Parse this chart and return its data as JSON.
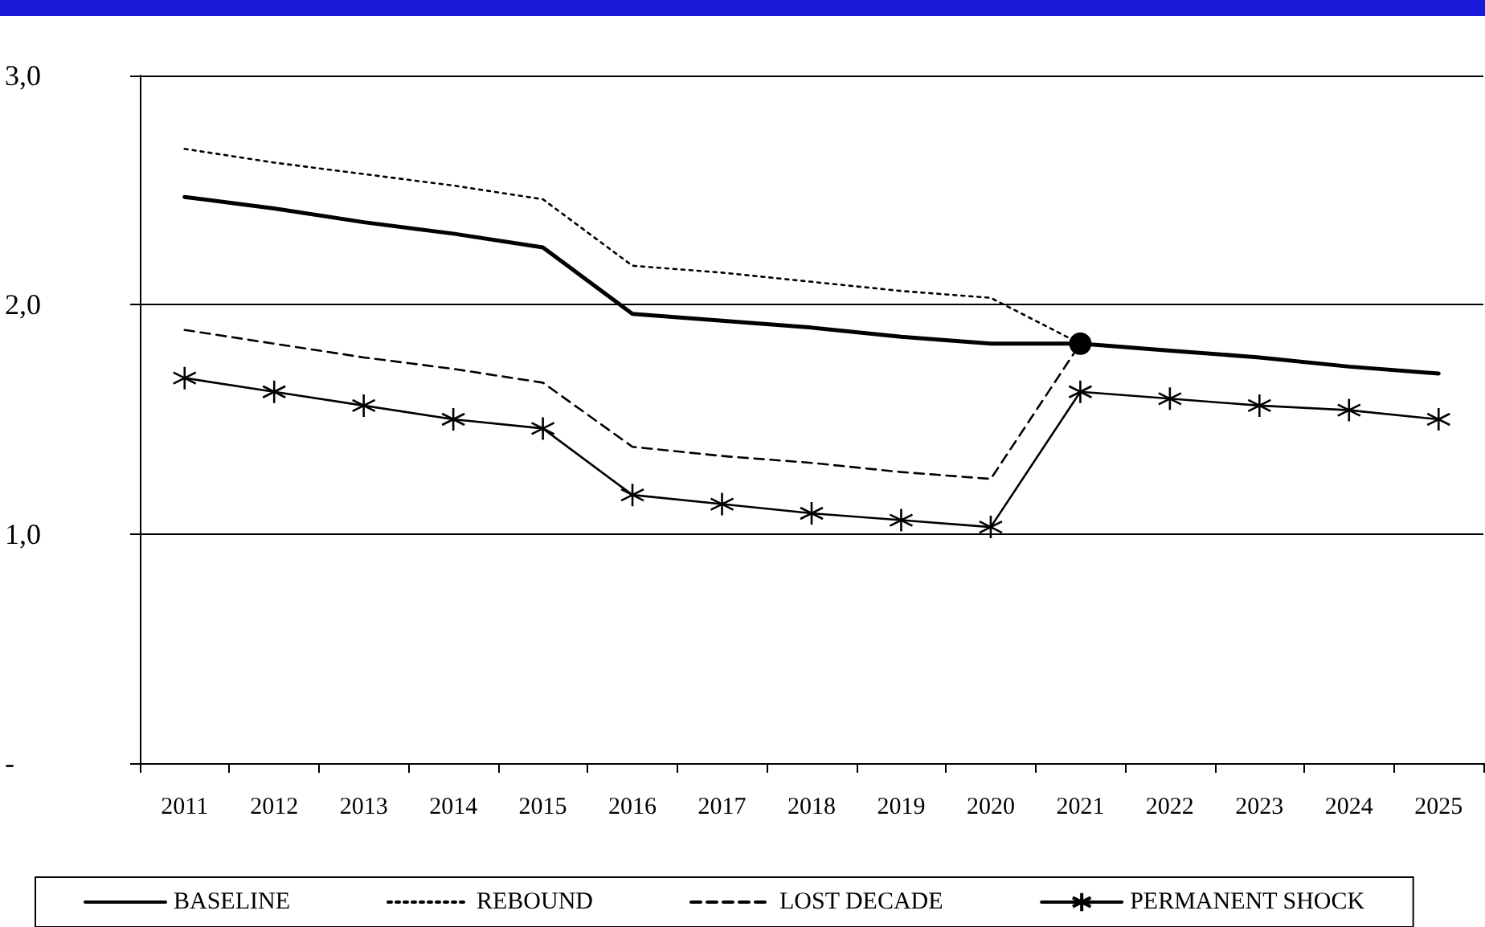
{
  "chart_data": {
    "type": "line",
    "categories": [
      "2011",
      "2012",
      "2013",
      "2014",
      "2015",
      "2016",
      "2017",
      "2018",
      "2019",
      "2020",
      "2021",
      "2022",
      "2023",
      "2024",
      "2025"
    ],
    "series": [
      {
        "name": "BASELINE",
        "color": "#000000",
        "line_style": "solid",
        "marker": "none",
        "values": [
          2.47,
          2.42,
          2.36,
          2.31,
          2.25,
          1.96,
          1.93,
          1.9,
          1.86,
          1.83,
          1.83,
          1.8,
          1.77,
          1.73,
          1.7
        ]
      },
      {
        "name": "REBOUND",
        "color": "#000000",
        "line_style": "dotted",
        "marker": "none",
        "values": [
          2.68,
          2.62,
          2.57,
          2.52,
          2.46,
          2.17,
          2.14,
          2.1,
          2.06,
          2.03,
          1.83,
          1.8,
          1.77,
          1.73,
          1.7
        ]
      },
      {
        "name": "LOST DECADE",
        "color": "#000000",
        "line_style": "dashed",
        "marker": "none",
        "values": [
          1.89,
          1.83,
          1.77,
          1.72,
          1.66,
          1.38,
          1.34,
          1.31,
          1.27,
          1.24,
          1.83,
          1.8,
          1.77,
          1.73,
          1.7
        ]
      },
      {
        "name": "PERMANENT SHOCK",
        "color": "#000000",
        "line_style": "solid",
        "marker": "cross",
        "values": [
          1.68,
          1.62,
          1.56,
          1.5,
          1.46,
          1.17,
          1.13,
          1.09,
          1.06,
          1.03,
          1.62,
          1.59,
          1.56,
          1.54,
          1.5
        ]
      },
      {
        "type": "scatter",
        "color": "#000000",
        "marker": "circle",
        "values": [
          null,
          null,
          null,
          null,
          null,
          null,
          null,
          null,
          null,
          null,
          1.83,
          null,
          null,
          null,
          null
        ]
      }
    ],
    "ylim": [
      0,
      3
    ],
    "yticks": [
      {
        "value": 0,
        "label": "-"
      },
      {
        "value": 1,
        "label": "1,0"
      },
      {
        "value": 2,
        "label": "2,0"
      },
      {
        "value": 3,
        "label": "3,0"
      }
    ],
    "grid": "y",
    "legend": "bottom"
  }
}
